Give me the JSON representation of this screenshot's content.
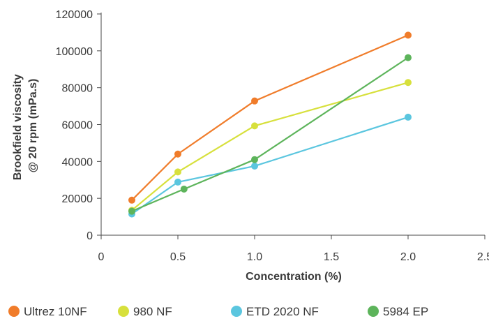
{
  "chart_data": {
    "type": "line",
    "xlabel": "Concentration (%)",
    "ylabel_lines": [
      "Brookfield viscosity",
      "@ 20 rpm (mPa.s)"
    ],
    "xlim": [
      0,
      2.5
    ],
    "ylim": [
      0,
      120000
    ],
    "xticks": [
      0,
      0.5,
      1.0,
      1.5,
      2.0,
      2.5
    ],
    "xtick_labels": [
      "0",
      "0.5",
      "1.0",
      "1.5",
      "2.0",
      "2.5"
    ],
    "yticks": [
      0,
      20000,
      40000,
      60000,
      80000,
      100000,
      120000
    ],
    "ytick_labels": [
      "0",
      "20000",
      "40000",
      "60000",
      "80000",
      "100000",
      "120000"
    ],
    "grid": false,
    "legend_position": "bottom",
    "series": [
      {
        "name": "Ultrez 10NF",
        "color": "#f07c2a",
        "x": [
          0.2,
          0.5,
          1.0,
          2.0
        ],
        "y": [
          19000,
          44000,
          72800,
          108500
        ]
      },
      {
        "name": "980 NF",
        "color": "#d7e03c",
        "x": [
          0.2,
          0.5,
          1.0,
          2.0
        ],
        "y": [
          13500,
          34300,
          59300,
          82800
        ]
      },
      {
        "name": "ETD 2020 NF",
        "color": "#5bc6df",
        "x": [
          0.2,
          0.5,
          1.0,
          2.0
        ],
        "y": [
          11500,
          28800,
          37500,
          64000
        ]
      },
      {
        "name": "5984 EP",
        "color": "#5db45b",
        "x": [
          0.2,
          0.54,
          1.0,
          2.0
        ],
        "y": [
          13000,
          25000,
          41000,
          96300
        ]
      }
    ]
  }
}
